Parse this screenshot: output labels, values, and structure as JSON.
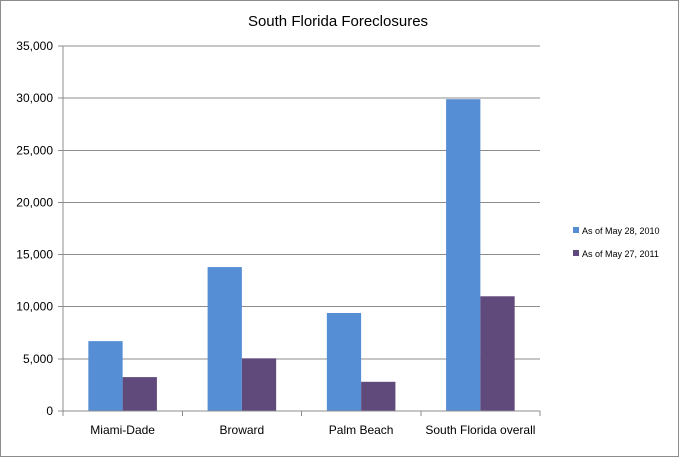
{
  "chart_data": {
    "type": "bar",
    "title": "South  Florida Foreclosures",
    "categories": [
      "Miami-Dade",
      "Broward",
      "Palm Beach",
      "South Florida overall"
    ],
    "series": [
      {
        "name": "As of May 28, 2010",
        "color": "#558ed5",
        "values": [
          6700,
          13800,
          9400,
          29900
        ]
      },
      {
        "name": "As of May 27, 2011",
        "color": "#604a7b",
        "values": [
          3250,
          5050,
          2800,
          11000
        ]
      }
    ],
    "ylim": [
      0,
      35000
    ],
    "yticks": [
      "0",
      "5,000",
      "10,000",
      "15,000",
      "20,000",
      "25,000",
      "30,000",
      "35,000"
    ],
    "grid": true,
    "legend_position": "right"
  }
}
